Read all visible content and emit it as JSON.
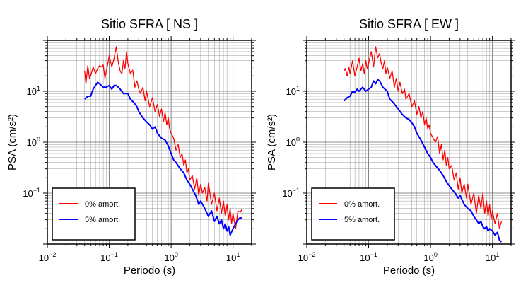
{
  "chart_data": [
    {
      "type": "line",
      "title": "Sitio SFRA [ NS ]",
      "xlabel": "Periodo (s)",
      "ylabel": "PSA (cm/s²)",
      "xscale": "log",
      "yscale": "log",
      "xlim": [
        0.01,
        20
      ],
      "ylim": [
        0.01,
        100
      ],
      "xticks": [
        {
          "value": 0.01,
          "base": "10",
          "exp": "−2"
        },
        {
          "value": 0.1,
          "base": "10",
          "exp": "−1"
        },
        {
          "value": 1,
          "base": "10",
          "exp": "0"
        },
        {
          "value": 10,
          "base": "10",
          "exp": "1"
        }
      ],
      "yticks": [
        {
          "value": 0.1,
          "base": "10",
          "exp": "−1"
        },
        {
          "value": 1,
          "base": "10",
          "exp": "0"
        },
        {
          "value": 10,
          "base": "10",
          "exp": "1"
        }
      ],
      "grid": true,
      "legend_position": "bottom-left",
      "series": [
        {
          "name": "0% amort.",
          "color": "#ff0000",
          "x": [
            0.04,
            0.042,
            0.045,
            0.048,
            0.05,
            0.055,
            0.06,
            0.065,
            0.07,
            0.075,
            0.08,
            0.085,
            0.09,
            0.095,
            0.1,
            0.11,
            0.12,
            0.13,
            0.14,
            0.15,
            0.16,
            0.17,
            0.18,
            0.19,
            0.2,
            0.22,
            0.24,
            0.26,
            0.28,
            0.3,
            0.32,
            0.35,
            0.38,
            0.4,
            0.45,
            0.5,
            0.55,
            0.6,
            0.65,
            0.7,
            0.75,
            0.8,
            0.85,
            0.9,
            0.95,
            1.0,
            1.1,
            1.2,
            1.3,
            1.4,
            1.5,
            1.6,
            1.7,
            1.8,
            1.9,
            2.0,
            2.2,
            2.4,
            2.6,
            2.8,
            3.0,
            3.2,
            3.5,
            3.8,
            4.0,
            4.5,
            5.0,
            5.5,
            6.0,
            6.5,
            7.0,
            7.5,
            8.0,
            8.5,
            9.0,
            9.5,
            10.0,
            11.0,
            12.0,
            13.0,
            14.0
          ],
          "y": [
            25,
            14,
            32,
            18,
            20,
            30,
            22,
            28,
            32,
            30,
            33,
            18,
            25,
            35,
            50,
            30,
            45,
            75,
            38,
            25,
            22,
            40,
            28,
            60,
            35,
            22,
            26,
            12,
            16,
            11,
            9,
            12,
            6.5,
            10,
            5,
            7.5,
            4,
            5.5,
            3.2,
            4.5,
            2.5,
            3.8,
            2.2,
            3.0,
            1.8,
            1.5,
            1.2,
            0.7,
            0.9,
            0.5,
            0.6,
            0.35,
            0.45,
            0.25,
            0.3,
            0.18,
            0.22,
            0.12,
            0.2,
            0.09,
            0.15,
            0.1,
            0.13,
            0.07,
            0.16,
            0.06,
            0.1,
            0.045,
            0.08,
            0.04,
            0.07,
            0.035,
            0.06,
            0.03,
            0.05,
            0.025,
            0.04,
            0.02,
            0.045,
            0.042,
            0.048
          ]
        },
        {
          "name": "5% amort.",
          "color": "#0000ff",
          "x": [
            0.04,
            0.045,
            0.05,
            0.055,
            0.06,
            0.065,
            0.07,
            0.08,
            0.09,
            0.1,
            0.11,
            0.12,
            0.13,
            0.14,
            0.15,
            0.17,
            0.2,
            0.22,
            0.25,
            0.28,
            0.3,
            0.35,
            0.4,
            0.45,
            0.5,
            0.55,
            0.6,
            0.7,
            0.8,
            0.9,
            1.0,
            1.1,
            1.2,
            1.4,
            1.6,
            1.8,
            2.0,
            2.2,
            2.5,
            2.8,
            3.0,
            3.5,
            4.0,
            4.5,
            5.0,
            5.5,
            6.0,
            6.5,
            7.0,
            7.5,
            8.0,
            8.5,
            9.0,
            10.0,
            11.0,
            12.0,
            13.0,
            14.0
          ],
          "y": [
            7,
            8,
            8,
            11,
            13,
            15,
            14,
            12,
            12,
            13,
            11,
            13,
            13,
            12,
            11,
            9,
            9,
            7,
            6,
            5,
            4,
            3,
            2.5,
            2.2,
            1.8,
            2.0,
            1.5,
            1.2,
            1.1,
            0.85,
            0.6,
            0.45,
            0.4,
            0.3,
            0.25,
            0.18,
            0.15,
            0.12,
            0.09,
            0.06,
            0.07,
            0.05,
            0.035,
            0.045,
            0.028,
            0.035,
            0.025,
            0.03,
            0.02,
            0.025,
            0.018,
            0.022,
            0.015,
            0.02,
            0.025,
            0.03,
            0.033,
            0.032
          ]
        }
      ]
    },
    {
      "type": "line",
      "title": "Sitio SFRA [ EW ]",
      "xlabel": "Periodo (s)",
      "ylabel": "PSA (cm/s²)",
      "xscale": "log",
      "yscale": "log",
      "xlim": [
        0.01,
        20
      ],
      "ylim": [
        0.01,
        100
      ],
      "xticks": [
        {
          "value": 0.01,
          "base": "10",
          "exp": "−2"
        },
        {
          "value": 0.1,
          "base": "10",
          "exp": "−1"
        },
        {
          "value": 1,
          "base": "10",
          "exp": "0"
        },
        {
          "value": 10,
          "base": "10",
          "exp": "1"
        }
      ],
      "yticks": [
        {
          "value": 0.1,
          "base": "10",
          "exp": "−1"
        },
        {
          "value": 1,
          "base": "10",
          "exp": "0"
        },
        {
          "value": 10,
          "base": "10",
          "exp": "1"
        }
      ],
      "grid": true,
      "legend_position": "bottom-left",
      "series": [
        {
          "name": "0% amort.",
          "color": "#ff0000",
          "x": [
            0.04,
            0.042,
            0.045,
            0.048,
            0.05,
            0.055,
            0.06,
            0.065,
            0.07,
            0.075,
            0.08,
            0.085,
            0.09,
            0.095,
            0.1,
            0.11,
            0.12,
            0.13,
            0.14,
            0.15,
            0.16,
            0.17,
            0.18,
            0.19,
            0.2,
            0.22,
            0.24,
            0.26,
            0.28,
            0.3,
            0.32,
            0.35,
            0.38,
            0.4,
            0.45,
            0.5,
            0.55,
            0.6,
            0.65,
            0.7,
            0.75,
            0.8,
            0.85,
            0.9,
            0.95,
            1.0,
            1.1,
            1.2,
            1.3,
            1.4,
            1.5,
            1.6,
            1.7,
            1.8,
            1.9,
            2.0,
            2.2,
            2.4,
            2.6,
            2.8,
            3.0,
            3.2,
            3.5,
            3.8,
            4.0,
            4.5,
            5.0,
            5.5,
            6.0,
            6.5,
            7.0,
            7.5,
            8.0,
            8.5,
            9.0,
            9.5,
            10.0,
            11.0,
            12.0,
            13.0,
            14.0
          ],
          "y": [
            25,
            28,
            20,
            30,
            22,
            40,
            20,
            30,
            45,
            25,
            35,
            22,
            40,
            28,
            35,
            60,
            30,
            75,
            45,
            55,
            35,
            28,
            40,
            22,
            30,
            18,
            25,
            12,
            18,
            10,
            15,
            9,
            11,
            7,
            9,
            5,
            6.5,
            3.5,
            5,
            3,
            4,
            2.2,
            3,
            1.8,
            2.2,
            1.5,
            1.2,
            1.0,
            1.3,
            0.6,
            0.9,
            0.45,
            0.7,
            0.35,
            0.5,
            0.3,
            0.35,
            0.18,
            0.25,
            0.12,
            0.2,
            0.1,
            0.15,
            0.08,
            0.15,
            0.06,
            0.1,
            0.04,
            0.09,
            0.05,
            0.1,
            0.04,
            0.07,
            0.035,
            0.06,
            0.03,
            0.045,
            0.025,
            0.04,
            0.02,
            0.028
          ]
        },
        {
          "name": "5% amort.",
          "color": "#0000ff",
          "x": [
            0.04,
            0.045,
            0.05,
            0.055,
            0.06,
            0.065,
            0.07,
            0.08,
            0.09,
            0.1,
            0.11,
            0.12,
            0.13,
            0.14,
            0.15,
            0.17,
            0.2,
            0.22,
            0.25,
            0.28,
            0.3,
            0.35,
            0.4,
            0.45,
            0.5,
            0.55,
            0.6,
            0.7,
            0.8,
            0.9,
            1.0,
            1.1,
            1.2,
            1.4,
            1.6,
            1.8,
            2.0,
            2.2,
            2.5,
            2.8,
            3.0,
            3.5,
            4.0,
            4.5,
            5.0,
            5.5,
            6.0,
            6.5,
            7.0,
            7.5,
            8.0,
            8.5,
            9.0,
            10.0,
            11.0,
            12.0,
            13.0,
            14.0
          ],
          "y": [
            6.5,
            7.5,
            8,
            10,
            9.5,
            11,
            10,
            12,
            10,
            11,
            12,
            16,
            14,
            17,
            16,
            12,
            10,
            7,
            6,
            5,
            4.5,
            3.5,
            3.0,
            2.8,
            2.4,
            2.0,
            1.5,
            1.1,
            0.8,
            0.6,
            0.5,
            0.4,
            0.35,
            0.28,
            0.22,
            0.17,
            0.14,
            0.12,
            0.1,
            0.08,
            0.09,
            0.06,
            0.05,
            0.045,
            0.035,
            0.03,
            0.025,
            0.028,
            0.022,
            0.02,
            0.022,
            0.018,
            0.02,
            0.018,
            0.015,
            0.017,
            0.012,
            0.011
          ]
        }
      ]
    }
  ]
}
